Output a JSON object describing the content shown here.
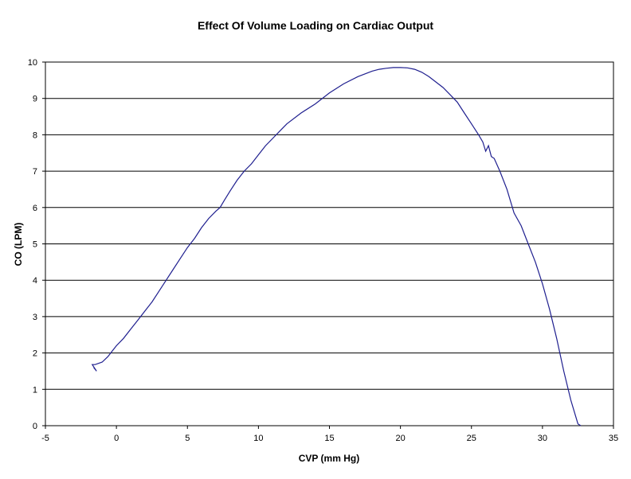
{
  "chart_data": {
    "type": "line",
    "title": "Effect Of Volume Loading on Cardiac Output",
    "xlabel": "CVP (mm Hg)",
    "ylabel": "CO (LPM)",
    "xlim": [
      -5,
      35
    ],
    "ylim": [
      0,
      10
    ],
    "x_ticks": [
      -5,
      0,
      5,
      10,
      15,
      20,
      25,
      30,
      35
    ],
    "y_ticks": [
      0,
      1,
      2,
      3,
      4,
      5,
      6,
      7,
      8,
      9,
      10
    ],
    "grid": "horizontal",
    "legend": "none",
    "line_color": "#1f1f8f",
    "series": [
      {
        "x": [
          -1.6,
          -1.4,
          -1.7,
          -1.5,
          -1.0,
          -0.6,
          -0.3,
          0.0,
          0.5,
          1.0,
          1.5,
          2.0,
          2.5,
          3.0,
          3.5,
          4.0,
          4.5,
          5.0,
          5.5,
          6.0,
          6.5,
          7.0,
          7.3,
          7.6,
          8.0,
          8.5,
          9.0,
          9.5,
          10.0,
          10.5,
          11.0,
          11.5,
          12.0,
          13.0,
          14.0,
          15.0,
          16.0,
          17.0,
          18.0,
          18.5,
          19.0,
          19.5,
          20.0,
          20.5,
          21.0,
          21.5,
          22.0,
          22.5,
          23.0,
          23.5,
          24.0,
          24.5,
          25.0,
          25.5,
          25.8,
          26.0,
          26.2,
          26.4,
          26.6,
          27.0,
          27.5,
          28.0,
          28.5,
          29.0,
          29.5,
          30.0,
          30.5,
          31.0,
          31.5,
          32.0,
          32.5,
          32.7
        ],
        "y": [
          1.6,
          1.5,
          1.68,
          1.68,
          1.75,
          1.9,
          2.05,
          2.2,
          2.4,
          2.65,
          2.9,
          3.15,
          3.4,
          3.7,
          4.0,
          4.3,
          4.6,
          4.9,
          5.15,
          5.45,
          5.7,
          5.9,
          6.0,
          6.2,
          6.45,
          6.75,
          7.0,
          7.2,
          7.45,
          7.7,
          7.9,
          8.1,
          8.3,
          8.6,
          8.85,
          9.15,
          9.4,
          9.6,
          9.75,
          9.8,
          9.83,
          9.85,
          9.85,
          9.84,
          9.8,
          9.72,
          9.6,
          9.45,
          9.3,
          9.1,
          8.9,
          8.6,
          8.3,
          8.0,
          7.8,
          7.55,
          7.7,
          7.4,
          7.35,
          7.0,
          6.5,
          5.85,
          5.5,
          5.0,
          4.5,
          3.9,
          3.2,
          2.4,
          1.5,
          0.7,
          0.05,
          0.0
        ]
      }
    ]
  }
}
